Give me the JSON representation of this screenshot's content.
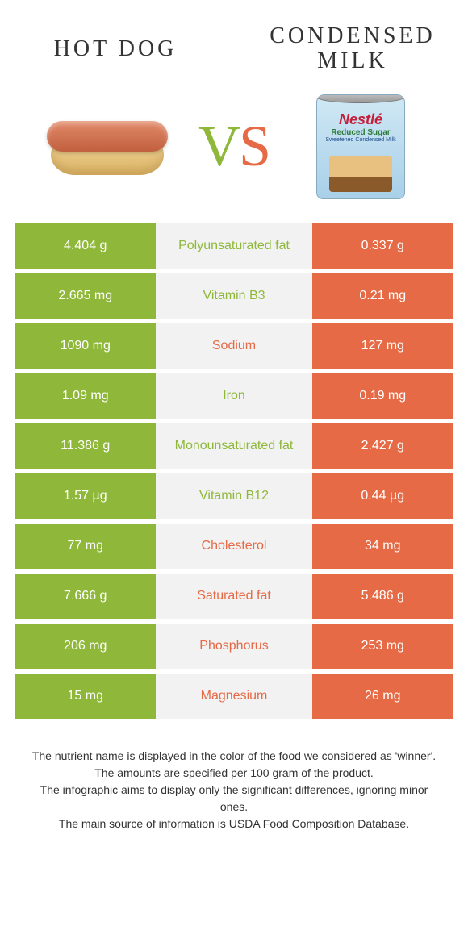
{
  "titles": {
    "left": "Hot dog",
    "right_l1": "Condensed",
    "right_l2": "milk"
  },
  "vs": {
    "v": "V",
    "s": "S"
  },
  "can": {
    "brand": "Nestlé",
    "line1": "Reduced Sugar",
    "line2": "Sweetened Condensed Milk"
  },
  "colors": {
    "green": "#8fb83a",
    "orange": "#e56a45",
    "mid_bg": "#f2f2f2"
  },
  "rows": [
    {
      "left": "4.404 g",
      "mid": "Polyunsaturated fat",
      "right": "0.337 g",
      "winner": "green"
    },
    {
      "left": "2.665 mg",
      "mid": "Vitamin B3",
      "right": "0.21 mg",
      "winner": "green"
    },
    {
      "left": "1090 mg",
      "mid": "Sodium",
      "right": "127 mg",
      "winner": "orange"
    },
    {
      "left": "1.09 mg",
      "mid": "Iron",
      "right": "0.19 mg",
      "winner": "green"
    },
    {
      "left": "11.386 g",
      "mid": "Monounsaturated fat",
      "right": "2.427 g",
      "winner": "green"
    },
    {
      "left": "1.57 µg",
      "mid": "Vitamin B12",
      "right": "0.44 µg",
      "winner": "green"
    },
    {
      "left": "77 mg",
      "mid": "Cholesterol",
      "right": "34 mg",
      "winner": "orange"
    },
    {
      "left": "7.666 g",
      "mid": "Saturated fat",
      "right": "5.486 g",
      "winner": "orange"
    },
    {
      "left": "206 mg",
      "mid": "Phosphorus",
      "right": "253 mg",
      "winner": "orange"
    },
    {
      "left": "15 mg",
      "mid": "Magnesium",
      "right": "26 mg",
      "winner": "orange"
    }
  ],
  "footer": {
    "l1": "The nutrient name is displayed in the color of the food we considered as 'winner'.",
    "l2": "The amounts are specified per 100 gram of the product.",
    "l3": "The infographic aims to display only the significant differences, ignoring minor ones.",
    "l4": "The main source of information is USDA Food Composition Database."
  }
}
